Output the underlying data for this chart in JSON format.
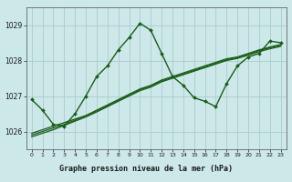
{
  "title": "Graphe pression niveau de la mer (hPa)",
  "bg_color": "#cce8e8",
  "plot_bg": "#cce8e8",
  "label_bg": "#ffffff",
  "grid_color": "#aacccc",
  "line_color": "#1a5c1a",
  "marker_color": "#1a5c1a",
  "x_ticks": [
    0,
    1,
    2,
    3,
    4,
    5,
    6,
    7,
    8,
    9,
    10,
    11,
    12,
    13,
    14,
    15,
    16,
    17,
    18,
    19,
    20,
    21,
    22,
    23
  ],
  "y_ticks": [
    1026,
    1027,
    1028,
    1029
  ],
  "ylim": [
    1025.5,
    1029.5
  ],
  "xlim": [
    -0.5,
    23.5
  ],
  "main_series": [
    1026.9,
    1026.6,
    1026.2,
    1026.15,
    1026.5,
    1027.0,
    1027.55,
    1027.85,
    1028.3,
    1028.65,
    1029.05,
    1028.85,
    1028.2,
    1027.55,
    1027.3,
    1026.95,
    1026.85,
    1026.7,
    1027.35,
    1027.85,
    1028.1,
    1028.2,
    1028.55,
    1028.5
  ],
  "trend_series": [
    [
      1025.95,
      1026.05,
      1026.15,
      1026.25,
      1026.35,
      1026.45,
      1026.6,
      1026.75,
      1026.9,
      1027.05,
      1027.2,
      1027.3,
      1027.45,
      1027.55,
      1027.65,
      1027.75,
      1027.85,
      1027.95,
      1028.05,
      1028.1,
      1028.2,
      1028.3,
      1028.38,
      1028.45
    ],
    [
      1025.9,
      1026.0,
      1026.1,
      1026.2,
      1026.32,
      1026.44,
      1026.58,
      1026.72,
      1026.88,
      1027.02,
      1027.18,
      1027.28,
      1027.42,
      1027.52,
      1027.62,
      1027.72,
      1027.82,
      1027.92,
      1028.02,
      1028.08,
      1028.18,
      1028.28,
      1028.36,
      1028.43
    ],
    [
      1025.85,
      1025.95,
      1026.05,
      1026.17,
      1026.29,
      1026.41,
      1026.55,
      1026.7,
      1026.85,
      1027.0,
      1027.15,
      1027.25,
      1027.4,
      1027.5,
      1027.6,
      1027.7,
      1027.8,
      1027.9,
      1028.0,
      1028.06,
      1028.15,
      1028.25,
      1028.33,
      1028.4
    ]
  ]
}
